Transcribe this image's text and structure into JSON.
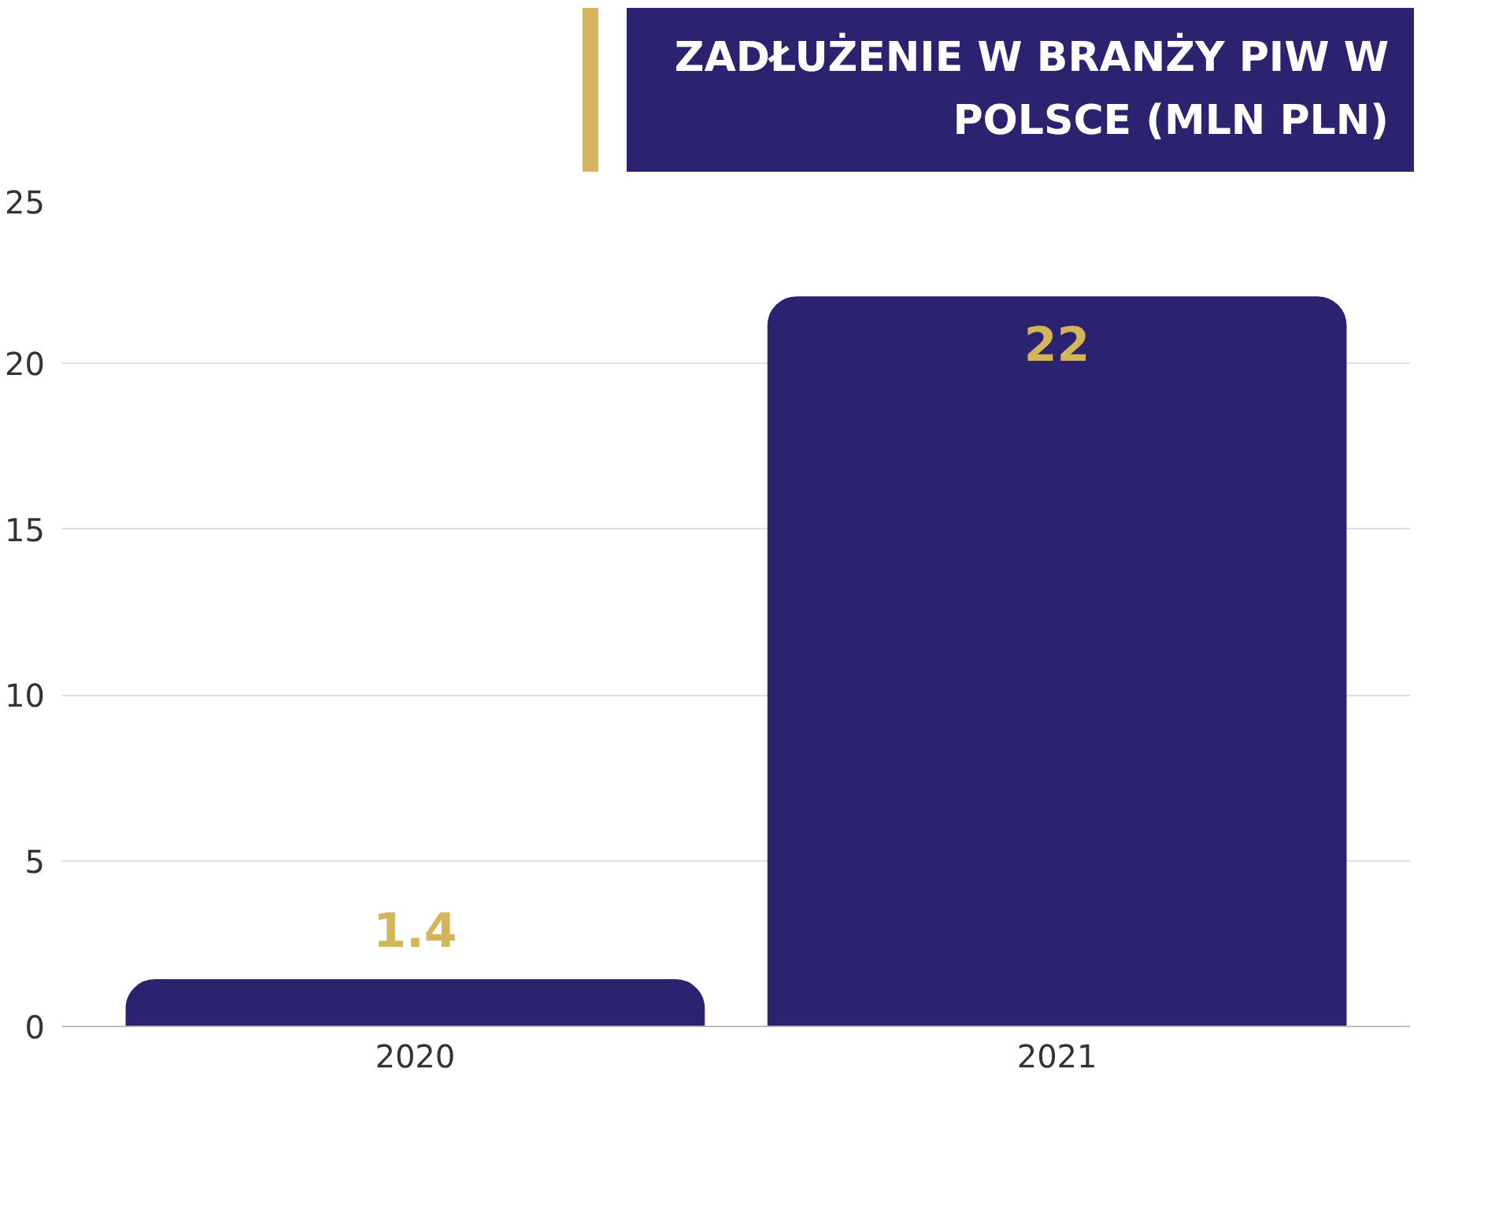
{
  "chart_data": {
    "type": "bar",
    "title": "ZADŁUŻENIE W BRANŻY PIW W POLSCE (MLN PLN)",
    "categories": [
      "2020",
      "2021"
    ],
    "values": [
      1.4,
      22
    ],
    "color": "#2b2370",
    "ylim": [
      0,
      25
    ],
    "yticks": [
      0,
      5,
      10,
      15,
      20,
      25
    ],
    "grid": "y",
    "data_labels": true
  }
}
